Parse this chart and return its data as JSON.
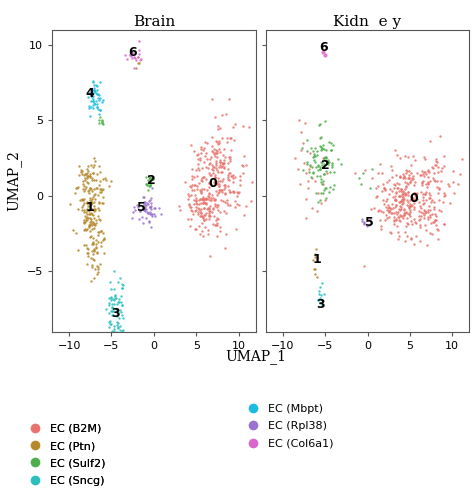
{
  "title_left": "Brain",
  "title_right": "Kidn  e y",
  "xlabel": "UMAP_1",
  "ylabel": "UMAP_2",
  "xlim": [
    -12,
    12
  ],
  "ylim": [
    -9,
    11
  ],
  "xticks": [
    -10,
    -5,
    0,
    5,
    10
  ],
  "yticks": [
    -5,
    0,
    5,
    10
  ],
  "colors": {
    "0": "#E8736C",
    "1": "#B5882A",
    "2": "#4DAF4A",
    "3": "#2ABFBF",
    "4": "#1ABDE0",
    "5": "#9B72CF",
    "6": "#D966CC"
  },
  "point_size": 3,
  "alpha": 0.85,
  "label_fontsize": 9,
  "title_fontsize": 11,
  "axis_label_fontsize": 10,
  "tick_fontsize": 8
}
